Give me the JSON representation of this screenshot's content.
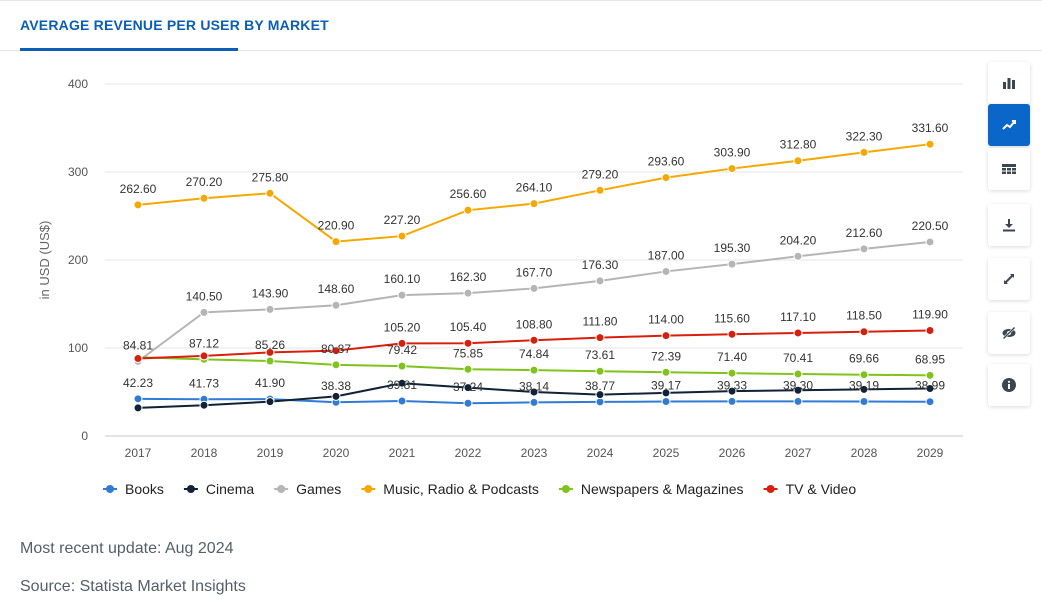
{
  "header": {
    "title": "AVERAGE REVENUE PER USER BY MARKET"
  },
  "footer": {
    "update": "Most recent update: Aug 2024",
    "source": "Source: Statista Market Insights"
  },
  "toolbar": [
    {
      "icon": "bar-chart-icon",
      "active": false
    },
    {
      "icon": "line-chart-icon",
      "active": true
    },
    {
      "icon": "table-icon",
      "active": false
    },
    {
      "icon": "download-icon",
      "active": false
    },
    {
      "icon": "fullscreen-icon",
      "active": false
    },
    {
      "icon": "hide-icon",
      "active": false
    },
    {
      "icon": "info-icon",
      "active": false
    }
  ],
  "colors": {
    "accent": "#0a66c9",
    "title": "#0a5fb4"
  },
  "chart_data": {
    "type": "line",
    "ylabel": "in USD (US$)",
    "ylim": [
      0,
      400
    ],
    "yticks": [
      0,
      100,
      200,
      300,
      400
    ],
    "grid": true,
    "legend": "bottom",
    "categories": [
      "2017",
      "2018",
      "2019",
      "2020",
      "2021",
      "2022",
      "2023",
      "2024",
      "2025",
      "2026",
      "2027",
      "2028",
      "2029"
    ],
    "series": [
      {
        "name": "Books",
        "color": "#2f7bd6",
        "values": [
          42.23,
          41.73,
          41.9,
          38.38,
          39.81,
          37.24,
          38.14,
          38.77,
          39.17,
          39.33,
          39.3,
          39.19,
          38.99
        ],
        "labels": [
          "42.23",
          "41.73",
          "41.90",
          "38.38",
          "39.81",
          "37.24",
          "38.14",
          "38.77",
          "39.17",
          "39.33",
          "39.30",
          "39.19",
          "38.99"
        ]
      },
      {
        "name": "Cinema",
        "color": "#0f2236",
        "values": [
          32,
          35,
          39,
          45,
          60,
          55,
          50,
          47,
          49,
          51,
          52,
          53,
          54
        ],
        "labels": []
      },
      {
        "name": "Games",
        "color": "#b5b5b5",
        "values": [
          84.81,
          140.5,
          143.9,
          148.6,
          160.1,
          162.3,
          167.7,
          176.3,
          187.0,
          195.3,
          204.2,
          212.6,
          220.5
        ],
        "labels": [
          "84.81",
          "140.50",
          "143.90",
          "148.60",
          "160.10",
          "162.30",
          "167.70",
          "176.30",
          "187.00",
          "195.30",
          "204.20",
          "212.60",
          "220.50"
        ]
      },
      {
        "name": "Music, Radio & Podcasts",
        "color": "#f5a800",
        "values": [
          262.6,
          270.2,
          275.8,
          220.9,
          227.2,
          256.6,
          264.1,
          279.2,
          293.6,
          303.9,
          312.8,
          322.3,
          331.6
        ],
        "labels": [
          "262.60",
          "270.20",
          "275.80",
          "220.90",
          "227.20",
          "256.60",
          "264.10",
          "279.20",
          "293.60",
          "303.90",
          "312.80",
          "322.30",
          "331.60"
        ]
      },
      {
        "name": "Newspapers & Magazines",
        "color": "#7fc31c",
        "values": [
          89.5,
          87.12,
          85.26,
          80.87,
          79.42,
          75.85,
          74.84,
          73.61,
          72.39,
          71.4,
          70.41,
          69.66,
          68.95
        ],
        "labels": [
          "",
          "87.12",
          "85.26",
          "80.87",
          "79.42",
          "75.85",
          "74.84",
          "73.61",
          "72.39",
          "71.40",
          "70.41",
          "69.66",
          "68.95"
        ]
      },
      {
        "name": "TV & Video",
        "color": "#d71f0e",
        "values": [
          88,
          91,
          95,
          97,
          105.2,
          105.4,
          108.8,
          111.8,
          114.0,
          115.6,
          117.1,
          118.5,
          119.9
        ],
        "labels": [
          "",
          "",
          "",
          "",
          "105.20",
          "105.40",
          "108.80",
          "111.80",
          "114.00",
          "115.60",
          "117.10",
          "118.50",
          "119.90"
        ]
      }
    ]
  }
}
